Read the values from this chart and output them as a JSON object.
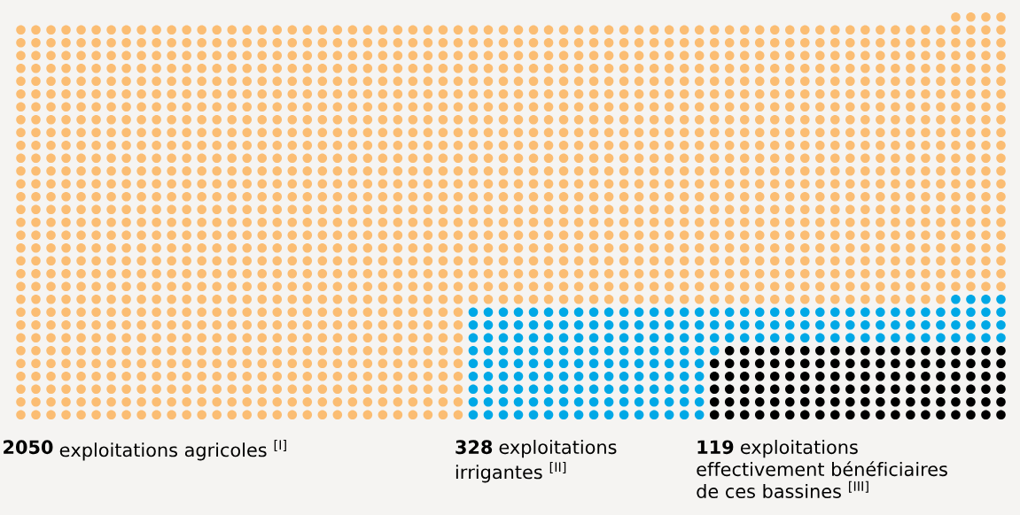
{
  "chart_data": {
    "type": "other",
    "categories": [
      "exploitations agricoles $^{[I]}$",
      "exploitations\nirrigantes $^{[II]}$",
      "exploitations\neffectivement bénéficiaires\nde ces bassines $^{[III]}$"
    ],
    "values": [
      2050,
      328,
      119
    ],
    "colors": [
      "#fbbd73",
      "#00a8e6",
      "#000000"
    ],
    "data_labels": true
  }
}
